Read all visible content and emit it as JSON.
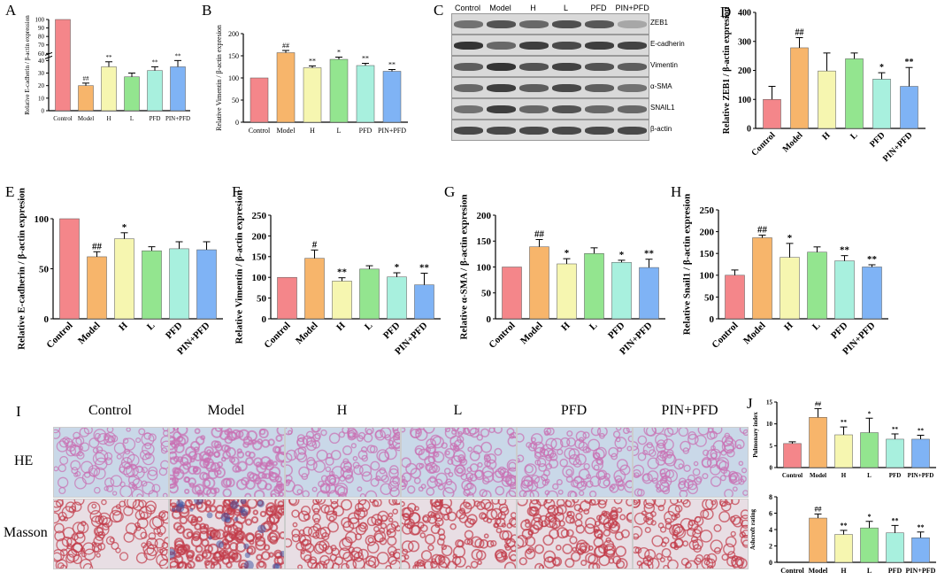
{
  "palette": [
    "#f4868a",
    "#f7b56b",
    "#f6f6b0",
    "#93e58f",
    "#a8f0de",
    "#7fb3f5"
  ],
  "charts": [
    {
      "id": "A",
      "panel_label": "A",
      "type": "bar",
      "categories": [
        "Control",
        "Model",
        "H",
        "L",
        "PFD",
        "PIN+PFD"
      ],
      "values": [
        100,
        20,
        35,
        27,
        32,
        35
      ],
      "errors": [
        0,
        2,
        4,
        3,
        3,
        5
      ],
      "marks": [
        "",
        "##",
        "**",
        "",
        "**",
        "**"
      ],
      "ylabel": "Relative E-cadherin / β-actin expression",
      "ticks_low": [
        "0",
        "10",
        "20",
        "30",
        "40"
      ],
      "ticks_high": [
        "60",
        "70",
        "80",
        "90",
        "100"
      ],
      "axis_break": true
    },
    {
      "id": "B",
      "panel_label": "B",
      "type": "bar",
      "categories": [
        "Control",
        "Model",
        "H",
        "L",
        "PFD",
        "PIN+PFD"
      ],
      "values": [
        100,
        157,
        123,
        142,
        128,
        115
      ],
      "errors": [
        0,
        5,
        4,
        5,
        5,
        4
      ],
      "marks": [
        "",
        "##",
        "**",
        "*",
        "**",
        "**"
      ],
      "ylabel": "Relative Vimentin / β-actin expresion",
      "ylim": [
        0,
        200
      ],
      "ticks": [
        "0",
        "50",
        "100",
        "150",
        "200"
      ]
    },
    {
      "id": "D",
      "panel_label": "D",
      "type": "bar",
      "categories": [
        "Control",
        "Model",
        "H",
        "L",
        "PFD",
        "PIN+PFD"
      ],
      "values": [
        100,
        278,
        198,
        240,
        170,
        145
      ],
      "errors": [
        45,
        35,
        62,
        20,
        22,
        65
      ],
      "marks": [
        "",
        "##",
        "",
        "",
        "*",
        "**"
      ],
      "ylabel": "Relative ZEB1 / β-actin expresion",
      "ylim": [
        0,
        400
      ],
      "ticks": [
        "0",
        "100",
        "200",
        "300",
        "400"
      ]
    },
    {
      "id": "E",
      "panel_label": "E",
      "type": "bar",
      "categories": [
        "Control",
        "Model",
        "H",
        "L",
        "PFD",
        "PIN+PFD"
      ],
      "values": [
        100,
        62,
        80,
        68,
        70,
        69
      ],
      "errors": [
        0,
        5,
        6,
        4,
        7,
        8
      ],
      "marks": [
        "",
        "##",
        "*",
        "",
        "",
        ""
      ],
      "ylabel": "Relative E-cadherin / β-actin expresion",
      "ylim": [
        0,
        100
      ],
      "ticks": [
        "0",
        "50",
        "100"
      ]
    },
    {
      "id": "F",
      "panel_label": "F",
      "type": "bar",
      "categories": [
        "Control",
        "Model",
        "H",
        "L",
        "PFD",
        "PIN+PFD"
      ],
      "values": [
        100,
        146,
        91,
        120,
        101,
        82
      ],
      "errors": [
        0,
        20,
        8,
        8,
        10,
        28
      ],
      "marks": [
        "",
        "#",
        "**",
        "",
        "*",
        "**"
      ],
      "ylabel": "Relative Vimentin / β-actin expresion",
      "ylim": [
        0,
        250
      ],
      "ticks": [
        "0",
        "50",
        "100",
        "150",
        "200",
        "250"
      ]
    },
    {
      "id": "G",
      "panel_label": "G",
      "type": "bar",
      "categories": [
        "Control",
        "Model",
        "H",
        "L",
        "PFD",
        "PIN+PFD"
      ],
      "values": [
        100,
        139,
        106,
        126,
        109,
        99
      ],
      "errors": [
        0,
        14,
        10,
        11,
        4,
        16
      ],
      "marks": [
        "",
        "##",
        "*",
        "",
        "*",
        "**"
      ],
      "ylabel": "Relative α-SMA / β-actin expresion",
      "ylim": [
        0,
        200
      ],
      "ticks": [
        "0",
        "50",
        "100",
        "150",
        "200"
      ]
    },
    {
      "id": "H",
      "panel_label": "H",
      "type": "bar",
      "categories": [
        "Control",
        "Model",
        "H",
        "L",
        "PFD",
        "PIN+PFD"
      ],
      "values": [
        100,
        186,
        141,
        153,
        133,
        119
      ],
      "errors": [
        12,
        6,
        32,
        12,
        12,
        5
      ],
      "marks": [
        "",
        "##",
        "*",
        "",
        "**",
        "**"
      ],
      "ylabel": "Relative Snail1 / β-actin expresion",
      "ylim": [
        0,
        250
      ],
      "ticks": [
        "0",
        "50",
        "100",
        "150",
        "200",
        "250"
      ]
    },
    {
      "id": "J1",
      "panel_label": "J",
      "type": "bar",
      "categories": [
        "Control",
        "Model",
        "H",
        "L",
        "PFD",
        "PIN+PFD"
      ],
      "values": [
        5.5,
        11.5,
        7.5,
        8,
        6.5,
        6.5
      ],
      "errors": [
        0.4,
        2,
        1.8,
        3.3,
        1.2,
        0.9
      ],
      "marks": [
        "",
        "##",
        "**",
        "*",
        "**",
        "**"
      ],
      "ylabel": "Pulmonary index",
      "ylim": [
        0,
        15
      ],
      "ticks": [
        "0",
        "5",
        "10",
        "15"
      ]
    },
    {
      "id": "J2",
      "panel_label": "",
      "type": "bar",
      "categories": [
        "Control",
        "Model",
        "H",
        "L",
        "PFD",
        "PIN+PFD"
      ],
      "values": [
        0,
        5.4,
        3.4,
        4.2,
        3.6,
        3.0
      ],
      "errors": [
        0,
        0.5,
        0.5,
        0.8,
        0.9,
        0.7
      ],
      "marks": [
        "",
        "##",
        "**",
        "*",
        "**",
        "**"
      ],
      "ylabel": "Ashcroft rating",
      "ylim": [
        0,
        8
      ],
      "ticks": [
        "0",
        "2",
        "4",
        "6",
        "8"
      ]
    }
  ],
  "blot": {
    "panel_label": "C",
    "lanes": [
      "Control",
      "Model",
      "H",
      "L",
      "PFD",
      "PIN+PFD"
    ],
    "rows": [
      {
        "label": "ZEB1",
        "intensity": [
          0.55,
          0.7,
          0.6,
          0.72,
          0.68,
          0.3
        ]
      },
      {
        "label": "E-cadherin",
        "intensity": [
          0.85,
          0.6,
          0.8,
          0.75,
          0.8,
          0.78
        ]
      },
      {
        "label": "Vimentin",
        "intensity": [
          0.65,
          0.85,
          0.7,
          0.78,
          0.7,
          0.65
        ]
      },
      {
        "label": "α-SMA",
        "intensity": [
          0.6,
          0.8,
          0.65,
          0.75,
          0.65,
          0.55
        ]
      },
      {
        "label": "SNAIL1",
        "intensity": [
          0.55,
          0.8,
          0.6,
          0.7,
          0.6,
          0.6
        ]
      },
      {
        "label": "β-actin",
        "intensity": [
          0.75,
          0.75,
          0.75,
          0.75,
          0.75,
          0.75
        ]
      }
    ]
  },
  "histology": {
    "panel_label": "I",
    "columns": [
      "Control",
      "Model",
      "H",
      "L",
      "PFD",
      "PIN+PFD"
    ],
    "rows": [
      {
        "label": "HE",
        "tint": "#c96fb2",
        "bg": "#c9d8e8",
        "density": [
          0.35,
          0.75,
          0.45,
          0.5,
          0.45,
          0.4
        ]
      },
      {
        "label": "Masson",
        "tint": "#c23a48",
        "bg": "#e8dee4",
        "density": [
          0.4,
          0.85,
          0.5,
          0.55,
          0.55,
          0.45
        ]
      }
    ]
  }
}
